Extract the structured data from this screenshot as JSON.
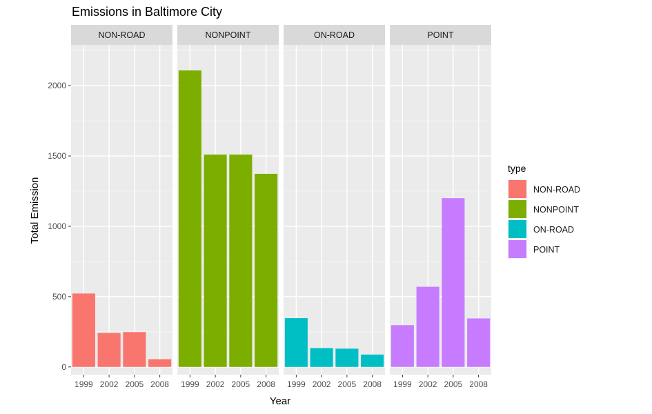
{
  "chart_data": {
    "type": "bar",
    "title": "Emissions in Baltimore City",
    "xlabel": "Year",
    "ylabel": "Total Emission",
    "ylim": [
      -55,
      2290
    ],
    "yticks": [
      0,
      500,
      1000,
      1500,
      2000
    ],
    "categories": [
      "1999",
      "2002",
      "2005",
      "2008"
    ],
    "facet_layout": "columns",
    "grid": true,
    "legend": {
      "title": "type",
      "placement": "right",
      "entries": [
        "NON-ROAD",
        "NONPOINT",
        "ON-ROAD",
        "POINT"
      ]
    },
    "series": [
      {
        "name": "NON-ROAD",
        "color": "#F8766D",
        "values": [
          522,
          242,
          248,
          55
        ]
      },
      {
        "name": "NONPOINT",
        "color": "#7CAE00",
        "values": [
          2108,
          1510,
          1510,
          1373
        ]
      },
      {
        "name": "ON-ROAD",
        "color": "#00BFC4",
        "values": [
          347,
          134,
          130,
          88
        ]
      },
      {
        "name": "POINT",
        "color": "#C77CFF",
        "values": [
          297,
          570,
          1200,
          345
        ]
      }
    ]
  }
}
